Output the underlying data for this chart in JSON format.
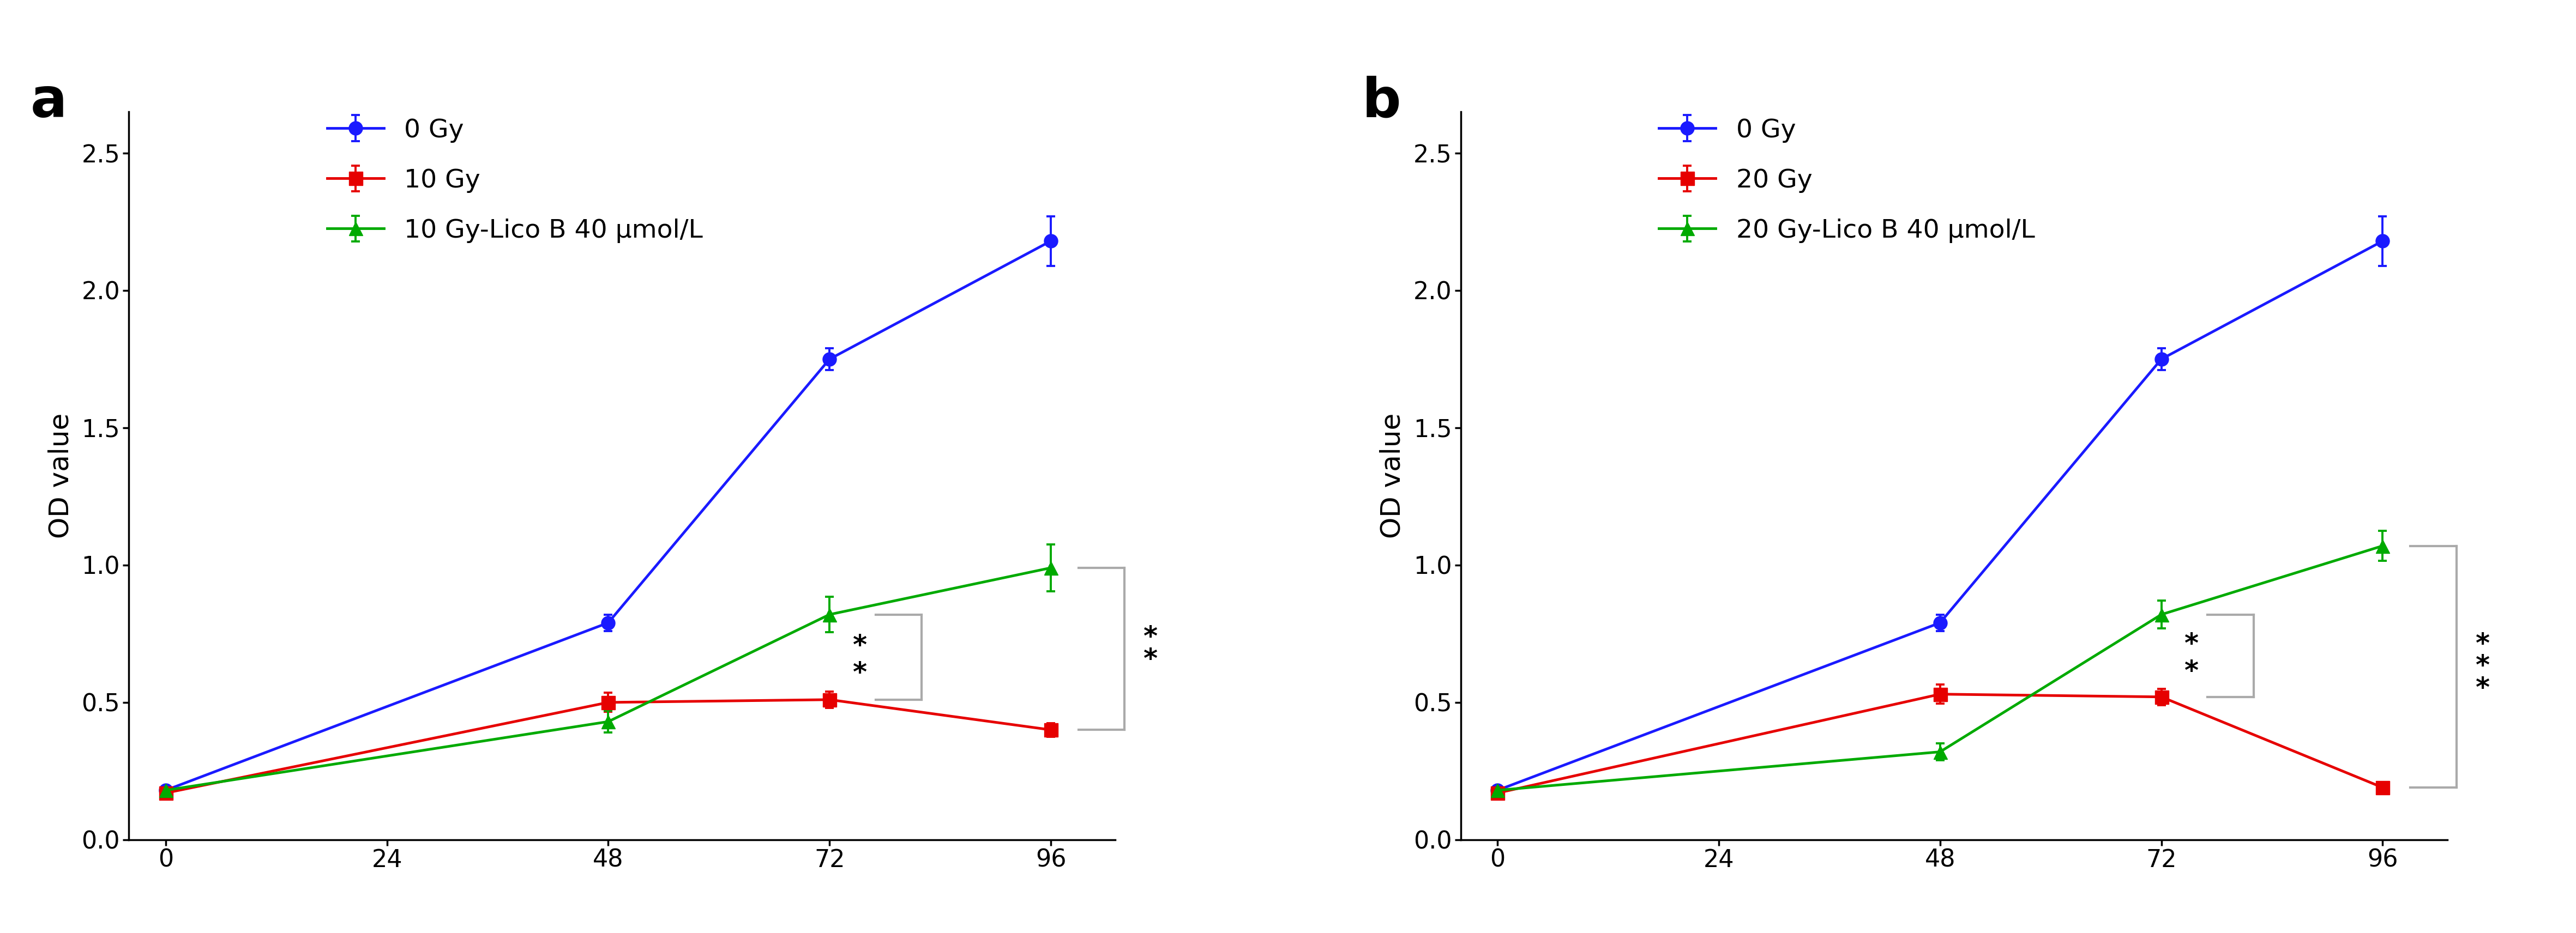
{
  "panel_a": {
    "label": "a",
    "legend": [
      "0 Gy",
      "10 Gy",
      "10 Gy-Lico B 40 μmol/L"
    ],
    "colors": [
      "#1a1aff",
      "#e60000",
      "#00aa00"
    ],
    "x": [
      0,
      48,
      72,
      96
    ],
    "blue_y": [
      0.18,
      0.79,
      1.75,
      2.18
    ],
    "blue_err": [
      0.015,
      0.03,
      0.04,
      0.09
    ],
    "red_y": [
      0.17,
      0.5,
      0.51,
      0.4
    ],
    "red_err": [
      0.01,
      0.035,
      0.03,
      0.025
    ],
    "green_y": [
      0.18,
      0.43,
      0.82,
      0.99
    ],
    "green_err": [
      0.01,
      0.04,
      0.065,
      0.085
    ],
    "ylabel": "OD value",
    "ylim": [
      0.0,
      2.65
    ],
    "yticks": [
      0.0,
      0.5,
      1.0,
      1.5,
      2.0,
      2.5
    ],
    "xticks": [
      0,
      24,
      48,
      72,
      96
    ],
    "sig_inner_label": "**",
    "sig_outer_label": "**"
  },
  "panel_b": {
    "label": "b",
    "legend": [
      "0 Gy",
      "20 Gy",
      "20 Gy-Lico B 40 μmol/L"
    ],
    "colors": [
      "#1a1aff",
      "#e60000",
      "#00aa00"
    ],
    "x": [
      0,
      48,
      72,
      96
    ],
    "blue_y": [
      0.18,
      0.79,
      1.75,
      2.18
    ],
    "blue_err": [
      0.015,
      0.03,
      0.04,
      0.09
    ],
    "red_y": [
      0.17,
      0.53,
      0.52,
      0.19
    ],
    "red_err": [
      0.01,
      0.035,
      0.03,
      0.02
    ],
    "green_y": [
      0.18,
      0.32,
      0.82,
      1.07
    ],
    "green_err": [
      0.01,
      0.03,
      0.05,
      0.055
    ],
    "ylabel": "OD value",
    "ylim": [
      0.0,
      2.65
    ],
    "yticks": [
      0.0,
      0.5,
      1.0,
      1.5,
      2.0,
      2.5
    ],
    "xticks": [
      0,
      24,
      48,
      72,
      96
    ],
    "sig_inner_label": "***",
    "sig_outer_label": "***"
  },
  "background_color": "#FFFFFF",
  "marker_size": 18,
  "line_width": 3.5,
  "legend_fontsize": 34,
  "label_fontsize": 36,
  "tick_fontsize": 32,
  "panel_label_fontsize": 72,
  "sig_fontsize": 36
}
